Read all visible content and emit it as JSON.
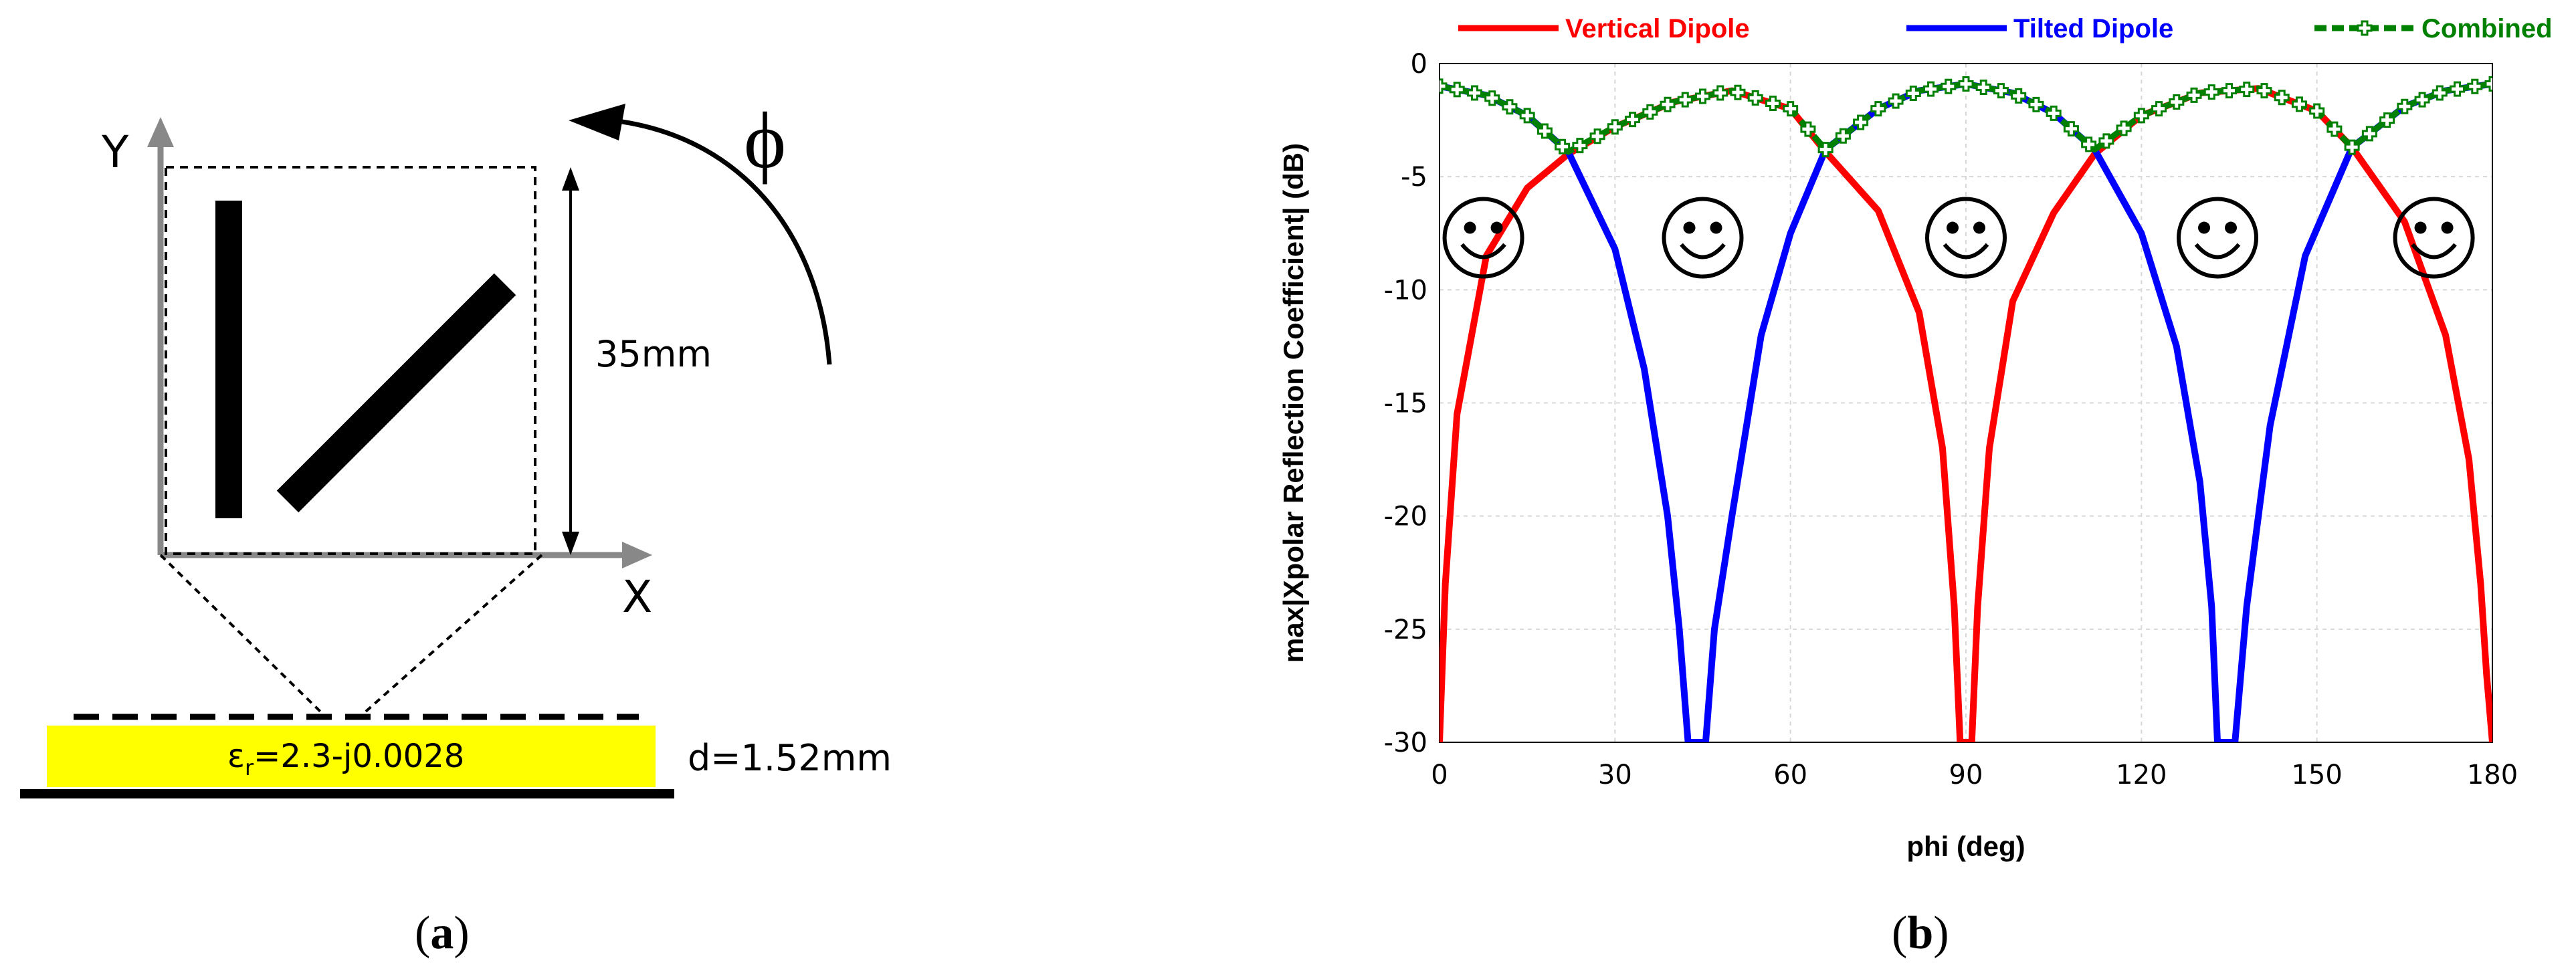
{
  "panel_a": {
    "label": "(a)",
    "label_letter": "a",
    "y_axis": "Y",
    "x_axis": "X",
    "angle_symbol": "ϕ",
    "dimension": "35mm",
    "permittivity_base": "ε",
    "permittivity_sub": "r",
    "permittivity_rest": "=2.3-j0.0028",
    "thickness": "d=1.52mm",
    "colors": {
      "substrate": "#ffff00",
      "lines": "#000000",
      "axes": "#888888"
    }
  },
  "panel_b": {
    "label": "(b)",
    "label_letter": "b"
  },
  "chart_data": {
    "type": "line",
    "title": "",
    "xlabel": "phi (deg)",
    "ylabel": "max|Xpolar Reflection Coefficient| (dB)",
    "xlim": [
      0,
      180
    ],
    "ylim": [
      -30,
      0
    ],
    "xticks": [
      0,
      30,
      60,
      90,
      120,
      150,
      180
    ],
    "yticks": [
      0,
      -5,
      -10,
      -15,
      -20,
      -25,
      -30
    ],
    "grid": true,
    "legend_position": "top",
    "series": [
      {
        "name": "Vertical Dipole",
        "color": "#ff0000",
        "style": "solid",
        "x": [
          0,
          1,
          3,
          8,
          15,
          22,
          30,
          40,
          50,
          60,
          66,
          75,
          82,
          86,
          88,
          89,
          90,
          91,
          92,
          94,
          98,
          105,
          112,
          120,
          130,
          140,
          150,
          156,
          165,
          172,
          176,
          178,
          179,
          180
        ],
        "y": [
          -30,
          -23,
          -15.5,
          -8.5,
          -5.5,
          -4.0,
          -2.8,
          -1.7,
          -1.2,
          -2.0,
          -3.9,
          -6.5,
          -11,
          -17,
          -24,
          -30,
          -30,
          -30,
          -24,
          -17,
          -10.5,
          -6.6,
          -4.0,
          -2.3,
          -1.3,
          -1.1,
          -2.1,
          -3.7,
          -7.0,
          -12,
          -17.5,
          -23,
          -27,
          -30
        ]
      },
      {
        "name": "Tilted Dipole",
        "color": "#0000ff",
        "style": "solid",
        "x": [
          0,
          8,
          15,
          22,
          30,
          35,
          39,
          41,
          42.5,
          43,
          44,
          45,
          45.5,
          47,
          50,
          55,
          60,
          66,
          75,
          82,
          90,
          98,
          105,
          112,
          120,
          126,
          130,
          132,
          133,
          134,
          135,
          136,
          138,
          142,
          148,
          156,
          165,
          172,
          180
        ],
        "y": [
          -1.0,
          -1.4,
          -2.3,
          -3.9,
          -8.2,
          -13.5,
          -20,
          -25,
          -30,
          -30,
          -30,
          -30,
          -30,
          -25,
          -20,
          -12,
          -7.5,
          -3.8,
          -2.0,
          -1.2,
          -0.9,
          -1.3,
          -2.2,
          -3.8,
          -7.5,
          -12.5,
          -18.5,
          -24,
          -30,
          -30,
          -30,
          -30,
          -24,
          -16,
          -8.5,
          -3.7,
          -1.9,
          -1.2,
          -0.9
        ]
      },
      {
        "name": "Combined",
        "color": "#008000",
        "style": "dashed",
        "marker": "plus-square",
        "x": [
          0,
          8,
          15,
          22,
          30,
          40,
          50,
          60,
          66,
          75,
          82,
          90,
          98,
          105,
          112,
          120,
          130,
          140,
          150,
          156,
          165,
          172,
          180
        ],
        "y": [
          -1.0,
          -1.4,
          -2.3,
          -3.9,
          -2.8,
          -1.7,
          -1.2,
          -2.0,
          -3.8,
          -2.0,
          -1.2,
          -0.9,
          -1.3,
          -2.2,
          -3.8,
          -2.3,
          -1.3,
          -1.1,
          -2.1,
          -3.7,
          -1.9,
          -1.2,
          -0.9
        ]
      }
    ],
    "annotations": [
      {
        "text": "☺",
        "x": 7.5,
        "y": -7.7
      },
      {
        "text": "☺",
        "x": 45,
        "y": -7.7
      },
      {
        "text": "☺",
        "x": 90,
        "y": -7.7
      },
      {
        "text": "☺",
        "x": 133,
        "y": -7.7
      },
      {
        "text": "☺",
        "x": 170,
        "y": -7.7
      }
    ]
  }
}
